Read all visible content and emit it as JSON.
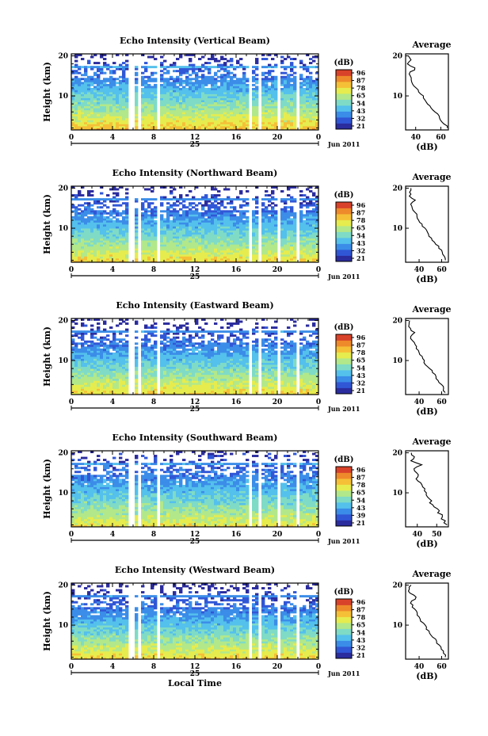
{
  "chart_data": [
    {
      "type": "heatmap",
      "title": "Echo Intensity (Vertical Beam)",
      "ylabel": "Height (km)",
      "x_ticks": [
        "0",
        "4",
        "8",
        "12",
        "16",
        "20",
        "0"
      ],
      "y_ticks": [
        "20",
        "10"
      ],
      "day_label": "25",
      "date_label": "Jun 2011",
      "xlim": [
        0,
        24
      ],
      "ylim": [
        1.5,
        20.5
      ],
      "colorbar": {
        "label": "(dB)",
        "ticks": [
          "96",
          "87",
          "78",
          "65",
          "54",
          "43",
          "32",
          "21"
        ],
        "range": [
          21,
          96
        ]
      },
      "data_gaps_hours": [
        [
          5.5,
          6.0
        ],
        [
          6.5,
          6.9
        ],
        [
          8.2,
          8.7
        ],
        [
          17.3,
          17.5
        ],
        [
          18.1,
          18.4
        ],
        [
          20.0,
          20.3
        ],
        [
          22.0,
          22.3
        ]
      ],
      "field": {
        "surface_dB": 78,
        "top_dB": 30,
        "cloud_top_km": 17.5
      },
      "average_profile": {
        "title": "Average",
        "xlabel": "(dB)",
        "x_ticks": [
          "40",
          "60"
        ],
        "xlim": [
          32,
          66
        ],
        "y_ticks": [
          "20",
          "10"
        ],
        "heights_km": [
          2,
          3,
          4,
          5,
          6,
          7,
          8,
          9,
          10,
          11,
          12,
          13,
          14,
          15,
          16,
          17,
          18,
          19,
          20
        ],
        "values_dB": [
          65,
          63,
          60,
          58,
          55,
          52,
          50,
          48,
          46,
          43,
          40,
          38,
          37,
          36,
          36,
          40,
          34,
          36,
          35
        ]
      }
    },
    {
      "type": "heatmap",
      "title": "Echo Intensity (Northward Beam)",
      "ylabel": "Height (km)",
      "x_ticks": [
        "0",
        "4",
        "8",
        "12",
        "16",
        "20",
        "0"
      ],
      "y_ticks": [
        "20",
        "10"
      ],
      "day_label": "25",
      "date_label": "Jun 2011",
      "xlim": [
        0,
        24
      ],
      "ylim": [
        1.5,
        20.5
      ],
      "colorbar": {
        "label": "(dB)",
        "ticks": [
          "96",
          "87",
          "78",
          "65",
          "54",
          "43",
          "32",
          "21"
        ],
        "range": [
          21,
          96
        ]
      },
      "data_gaps_hours": [
        [
          5.5,
          6.0
        ],
        [
          6.5,
          6.9
        ],
        [
          8.2,
          8.7
        ],
        [
          17.3,
          17.5
        ],
        [
          18.1,
          18.4
        ],
        [
          20.0,
          20.3
        ],
        [
          22.0,
          22.3
        ]
      ],
      "field": {
        "surface_dB": 75,
        "top_dB": 28,
        "cloud_top_km": 17.5
      },
      "average_profile": {
        "title": "Average",
        "xlabel": "(dB)",
        "x_ticks": [
          "40",
          "60"
        ],
        "xlim": [
          28,
          66
        ],
        "y_ticks": [
          "20",
          "10"
        ],
        "heights_km": [
          2,
          3,
          4,
          5,
          6,
          7,
          8,
          9,
          10,
          11,
          12,
          13,
          14,
          15,
          16,
          17,
          18,
          19,
          20
        ],
        "values_dB": [
          63,
          62,
          60,
          58,
          55,
          52,
          49,
          47,
          45,
          42,
          40,
          38,
          36,
          34,
          33,
          37,
          32,
          31,
          33
        ]
      }
    },
    {
      "type": "heatmap",
      "title": "Echo Intensity (Eastward Beam)",
      "ylabel": "Height (km)",
      "x_ticks": [
        "0",
        "4",
        "8",
        "12",
        "16",
        "20",
        "0"
      ],
      "y_ticks": [
        "20",
        "10"
      ],
      "day_label": "25",
      "date_label": "Jun 2011",
      "xlim": [
        0,
        24
      ],
      "ylim": [
        1.5,
        20.5
      ],
      "colorbar": {
        "label": "(dB)",
        "ticks": [
          "96",
          "87",
          "78",
          "65",
          "54",
          "43",
          "32",
          "21"
        ],
        "range": [
          21,
          96
        ]
      },
      "data_gaps_hours": [
        [
          5.5,
          6.0
        ],
        [
          6.5,
          6.9
        ],
        [
          8.2,
          8.7
        ],
        [
          17.3,
          17.5
        ],
        [
          18.1,
          18.4
        ],
        [
          20.0,
          20.3
        ],
        [
          22.0,
          22.3
        ]
      ],
      "field": {
        "surface_dB": 75,
        "top_dB": 28,
        "cloud_top_km": 17.5
      },
      "average_profile": {
        "title": "Average",
        "xlabel": "(dB)",
        "x_ticks": [
          "40",
          "60"
        ],
        "xlim": [
          28,
          66
        ],
        "y_ticks": [
          "20",
          "10"
        ],
        "heights_km": [
          2,
          3,
          4,
          5,
          6,
          7,
          8,
          9,
          10,
          11,
          12,
          13,
          14,
          15,
          16,
          17,
          18,
          19,
          20
        ],
        "values_dB": [
          63,
          62,
          60,
          57,
          55,
          52,
          49,
          46,
          44,
          42,
          40,
          38,
          36,
          34,
          33,
          36,
          32,
          31,
          32
        ]
      }
    },
    {
      "type": "heatmap",
      "title": "Echo Intensity (Southward Beam)",
      "ylabel": "Height (km)",
      "x_ticks": [
        "0",
        "4",
        "8",
        "12",
        "16",
        "20",
        "0"
      ],
      "y_ticks": [
        "20",
        "10"
      ],
      "day_label": "25",
      "date_label": "Jun 2011",
      "xlim": [
        0,
        24
      ],
      "ylim": [
        1.5,
        20.5
      ],
      "colorbar": {
        "label": "(dB)",
        "ticks": [
          "96",
          "87",
          "78",
          "65",
          "54",
          "43",
          "39",
          "21"
        ],
        "range": [
          21,
          96
        ]
      },
      "data_gaps_hours": [
        [
          5.5,
          6.0
        ],
        [
          6.5,
          6.9
        ],
        [
          8.2,
          8.7
        ],
        [
          17.3,
          17.5
        ],
        [
          18.1,
          18.4
        ],
        [
          20.0,
          20.3
        ],
        [
          22.0,
          22.3
        ]
      ],
      "field": {
        "surface_dB": 72,
        "top_dB": 30,
        "cloud_top_km": 17.5
      },
      "average_profile": {
        "title": "Average",
        "xlabel": "(dB)",
        "x_ticks": [
          "40",
          "50"
        ],
        "xlim": [
          34,
          56
        ],
        "y_ticks": [
          "20",
          "10"
        ],
        "heights_km": [
          2,
          3,
          4,
          5,
          6,
          7,
          8,
          9,
          10,
          11,
          12,
          13,
          14,
          15,
          16,
          17,
          18,
          19,
          20
        ],
        "values_dB": [
          55,
          54,
          53,
          51,
          50,
          48,
          47,
          46,
          45,
          44,
          42,
          41,
          40,
          39,
          38,
          42,
          37,
          38,
          37
        ]
      }
    },
    {
      "type": "heatmap",
      "title": "Echo Intensity (Westward Beam)",
      "ylabel": "Height (km)",
      "xlabel": "Local Time",
      "x_ticks": [
        "0",
        "4",
        "8",
        "12",
        "16",
        "20",
        "0"
      ],
      "y_ticks": [
        "20",
        "10"
      ],
      "day_label": "25",
      "date_label": "Jun 2011",
      "xlim": [
        0,
        24
      ],
      "ylim": [
        1.5,
        20.5
      ],
      "colorbar": {
        "label": "(dB)",
        "ticks": [
          "96",
          "87",
          "78",
          "65",
          "54",
          "43",
          "32",
          "21"
        ],
        "range": [
          21,
          96
        ]
      },
      "data_gaps_hours": [
        [
          5.5,
          6.0
        ],
        [
          6.5,
          6.9
        ],
        [
          8.2,
          8.7
        ],
        [
          17.3,
          17.5
        ],
        [
          18.1,
          18.4
        ],
        [
          20.0,
          20.3
        ],
        [
          22.0,
          22.3
        ]
      ],
      "field": {
        "surface_dB": 75,
        "top_dB": 28,
        "cloud_top_km": 17.5
      },
      "average_profile": {
        "title": "Average",
        "xlabel": "(dB)",
        "x_ticks": [
          "40",
          "60"
        ],
        "xlim": [
          28,
          66
        ],
        "y_ticks": [
          "20",
          "10"
        ],
        "heights_km": [
          2,
          3,
          4,
          5,
          6,
          7,
          8,
          9,
          10,
          11,
          12,
          13,
          14,
          15,
          16,
          17,
          18,
          19,
          20
        ],
        "values_dB": [
          63,
          62,
          60,
          58,
          55,
          52,
          49,
          47,
          45,
          42,
          40,
          38,
          36,
          34,
          33,
          38,
          32,
          31,
          33
        ]
      }
    }
  ],
  "colormap": [
    "#ffffff",
    "#2b2c9e",
    "#3157d6",
    "#3b8de8",
    "#54c0ec",
    "#7fdbc6",
    "#b2e88a",
    "#e6ec4e",
    "#f5c037",
    "#ee8a2b",
    "#d9432a"
  ]
}
